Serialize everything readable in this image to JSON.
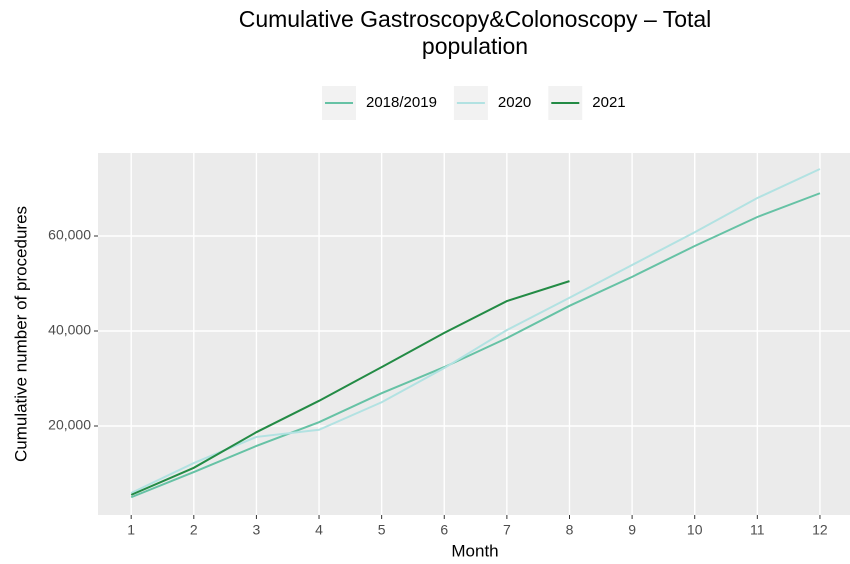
{
  "chart_data": {
    "type": "line",
    "title": "Cumulative Gastroscopy&Colonoscopy – Total population",
    "x_label": "Month",
    "y_label": "Cumulative number of procedures",
    "x": [
      1,
      2,
      3,
      4,
      5,
      6,
      7,
      8,
      9,
      10,
      11,
      12
    ],
    "series": [
      {
        "name": "2018/2019",
        "color": "#66c2a5",
        "values": [
          5000,
          10300,
          15800,
          20800,
          26900,
          32400,
          38500,
          45300,
          51400,
          57900,
          64000,
          69000
        ]
      },
      {
        "name": "2020",
        "color": "#b2e2e2",
        "values": [
          5900,
          12200,
          17700,
          19200,
          25000,
          32200,
          40200,
          47000,
          53900,
          60800,
          68000,
          74100
        ]
      },
      {
        "name": "2021",
        "color": "#238b45",
        "values": [
          5500,
          11200,
          18700,
          25300,
          32400,
          39600,
          46300,
          50500,
          null,
          null,
          null,
          null
        ]
      }
    ],
    "xlim": [
      0.47,
      12.48
    ],
    "xticks": [
      1,
      2,
      3,
      4,
      5,
      6,
      7,
      8,
      9,
      10,
      11,
      12
    ],
    "ylim": [
      1263,
      77474
    ],
    "yticks": [
      {
        "value": 20000,
        "label": "20,000"
      },
      {
        "value": 40000,
        "label": "40,000"
      },
      {
        "value": 60000,
        "label": "60,000"
      }
    ],
    "grid": true,
    "legend": "top"
  }
}
